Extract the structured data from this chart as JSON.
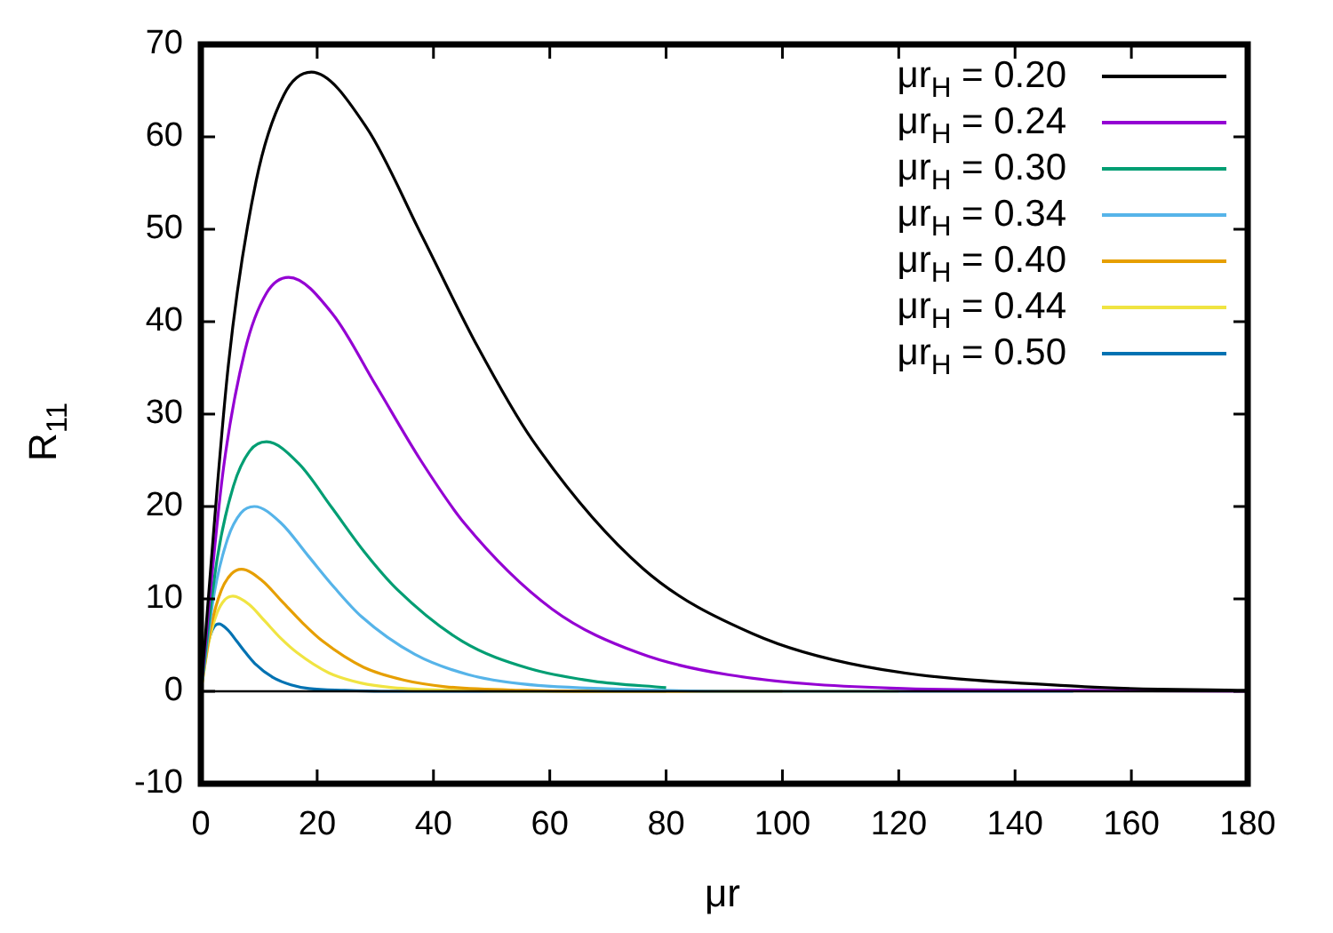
{
  "chart_data": {
    "type": "line",
    "xlabel": "μr",
    "ylabel": "R$_{11}$",
    "xlim": [
      0,
      180
    ],
    "xticks": [
      0,
      20,
      40,
      60,
      80,
      100,
      120,
      140,
      160,
      180
    ],
    "ylim": [
      -10,
      70
    ],
    "yticks": [
      -10,
      0,
      10,
      20,
      30,
      40,
      50,
      60,
      70
    ],
    "grid": false,
    "legend": "top right",
    "marker": "none",
    "line_style": "solid",
    "ref_lines": [
      {
        "axis": "y",
        "value": 0,
        "color": "#000000"
      }
    ],
    "series": [
      {
        "name": "μr$_{H}$ = 0.20",
        "color": "#000000",
        "x": [
          0,
          4.75,
          9.5,
          14.25,
          19,
          28.5,
          38,
          47.5,
          57,
          76,
          95,
          114,
          152,
          180
        ],
        "values": [
          0,
          35.4,
          55.2,
          64.5,
          67,
          61,
          49.3,
          37.4,
          27.2,
          13.3,
          6.2,
          2.7,
          0.5,
          0.1
        ]
      },
      {
        "name": "μr$_{H}$ = 0.24",
        "color": "#9400d3",
        "x": [
          0,
          3.8,
          7.6,
          11.3,
          15.1,
          22.7,
          30.2,
          37.8,
          45.3,
          60.4,
          75.5,
          90.6,
          120.8,
          151,
          180
        ],
        "values": [
          0,
          23.7,
          36.9,
          43.1,
          44.8,
          40.8,
          33,
          25,
          18.2,
          8.9,
          4.1,
          1.8,
          0.3,
          0.1,
          0
        ]
      },
      {
        "name": "μr$_{H}$ = 0.30",
        "color": "#009e73",
        "x": [
          0,
          2.8,
          5.6,
          8.4,
          11.3,
          16.9,
          22.5,
          28.1,
          33.8,
          45,
          56.3,
          67.5,
          80
        ],
        "values": [
          0,
          14.3,
          22.2,
          26,
          27,
          24.6,
          19.9,
          15.1,
          11,
          5.4,
          2.5,
          1.1,
          0.4
        ]
      },
      {
        "name": "μr$_{H}$ = 0.34",
        "color": "#56b4e9",
        "x": [
          0,
          2.3,
          4.6,
          6.9,
          9.2,
          13.8,
          18.4,
          23,
          27.6,
          36.8,
          46,
          55.2,
          73.6,
          92,
          150
        ],
        "values": [
          0,
          10.6,
          16.5,
          19.3,
          20,
          18.2,
          14.7,
          11.2,
          8.1,
          4,
          1.8,
          0.8,
          0.2,
          0,
          0
        ]
      },
      {
        "name": "μr$_{H}$ = 0.40",
        "color": "#e69f00",
        "x": [
          0,
          1.75,
          3.5,
          5.25,
          7,
          10.5,
          14,
          17.5,
          21,
          28,
          35,
          42,
          56,
          70,
          100
        ],
        "values": [
          0,
          7,
          10.9,
          12.7,
          13.2,
          12,
          9.7,
          7.4,
          5.4,
          2.6,
          1.2,
          0.5,
          0.1,
          0,
          0
        ]
      },
      {
        "name": "μr$_{H}$ = 0.44",
        "color": "#f0e442",
        "x": [
          0,
          1.4,
          2.8,
          4.1,
          5.5,
          8.3,
          11,
          13.8,
          16.5,
          22,
          27.5,
          33,
          44,
          55,
          120
        ],
        "values": [
          0,
          5.4,
          8.5,
          9.9,
          10.3,
          9.4,
          7.6,
          5.7,
          4.2,
          2,
          0.9,
          0.4,
          0.1,
          0,
          0
        ]
      },
      {
        "name": "μr$_{H}$ = 0.50",
        "color": "#0072b2",
        "x": [
          0,
          0.8,
          1.6,
          2.3,
          3.1,
          4.7,
          6.2,
          7.8,
          9.3,
          12.4,
          15.5,
          18.6,
          24.8,
          31,
          80
        ],
        "values": [
          0,
          3.9,
          6,
          7,
          7.3,
          6.6,
          5.4,
          4.1,
          3,
          1.5,
          0.7,
          0.3,
          0.1,
          0,
          0
        ]
      }
    ]
  }
}
